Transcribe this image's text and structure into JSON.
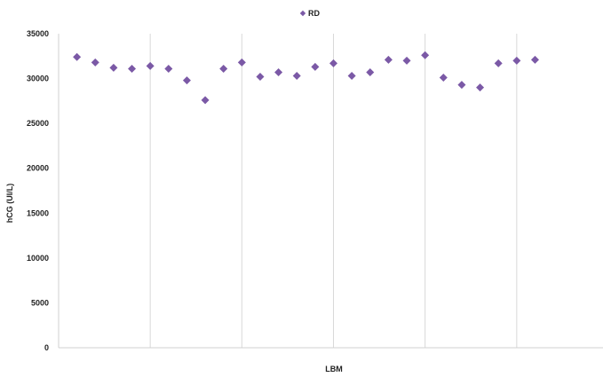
{
  "chart_data": {
    "type": "scatter",
    "title": "",
    "xlabel": "LBM",
    "ylabel": "hCG (UI/L)",
    "ylim": [
      0,
      35000
    ],
    "yticks": [
      0,
      5000,
      10000,
      15000,
      20000,
      25000,
      30000,
      35000
    ],
    "ytick_labels": [
      "0",
      "5000",
      "10000",
      "15000",
      "20000",
      "25000",
      "30000",
      "35000"
    ],
    "xlim": [
      0,
      30
    ],
    "xticks": [
      0,
      5,
      10,
      15,
      20,
      25,
      30
    ],
    "x_tick_labels_shown": false,
    "grid": {
      "horizontal": false,
      "vertical": true
    },
    "legend": {
      "position": "top-center"
    },
    "series": [
      {
        "name": "RD",
        "color": "#7b59a6",
        "marker": "diamond",
        "x": [
          1,
          2,
          3,
          4,
          5,
          6,
          7,
          8,
          9,
          10,
          11,
          12,
          13,
          14,
          15,
          16,
          17,
          18,
          19,
          20,
          21,
          22,
          23,
          24,
          25,
          26
        ],
        "y": [
          32400,
          31800,
          31200,
          31100,
          31400,
          31100,
          29800,
          27600,
          31100,
          31800,
          30200,
          30700,
          30300,
          31300,
          31700,
          30300,
          30700,
          32100,
          32000,
          32600,
          30100,
          29300,
          29000,
          31700,
          32000,
          32100
        ]
      }
    ]
  }
}
